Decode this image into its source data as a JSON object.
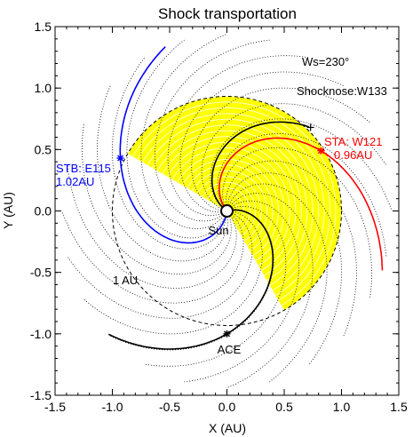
{
  "chart_data": {
    "type": "scatter",
    "title": "Shock transportation",
    "xlabel": "X (AU)",
    "ylabel": "Y (AU)",
    "xlim": [
      -1.5,
      1.5
    ],
    "ylim": [
      -1.5,
      1.5
    ],
    "xticks": [
      "-1.5",
      "-1.0",
      "-0.5",
      "0.0",
      "0.5",
      "1.0",
      "1.5"
    ],
    "yticks": [
      "-1.5",
      "-1.0",
      "-0.5",
      "0.0",
      "0.5",
      "1.0",
      "1.5"
    ],
    "grid": false,
    "solar_wind_speed_label": "Ws=230°",
    "shocknose_label": "Shocknose:W133",
    "sun_label": "Sun",
    "orbit_label": "1 AU",
    "orbit_radius_au": 1.0,
    "shock_sector": {
      "color": "#ffff00",
      "inner_radius_au": 0.0,
      "outer_radius_au": 1.0,
      "start_angle_deg": -60,
      "end_angle_deg": 150,
      "center_direction_deg": 43
    },
    "spacecraft": [
      {
        "name": "STB",
        "label_line1": "STB: E115",
        "label_line2": "1.02AU",
        "x": -0.93,
        "y": 0.43,
        "color": "#0000ff"
      },
      {
        "name": "STA",
        "label_line1": "STA: W121",
        "label_line2": "0.96AU",
        "x": 0.82,
        "y": 0.49,
        "color": "#ff0000"
      },
      {
        "name": "ACE",
        "label_line1": "ACE",
        "label_line2": "",
        "x": 0.0,
        "y": -1.0,
        "color": "#000000"
      }
    ],
    "shocknose_point": {
      "x": 0.73,
      "y": 0.68
    },
    "background_spirals": {
      "count": 24,
      "color": "#000000",
      "style": "dotted"
    }
  }
}
